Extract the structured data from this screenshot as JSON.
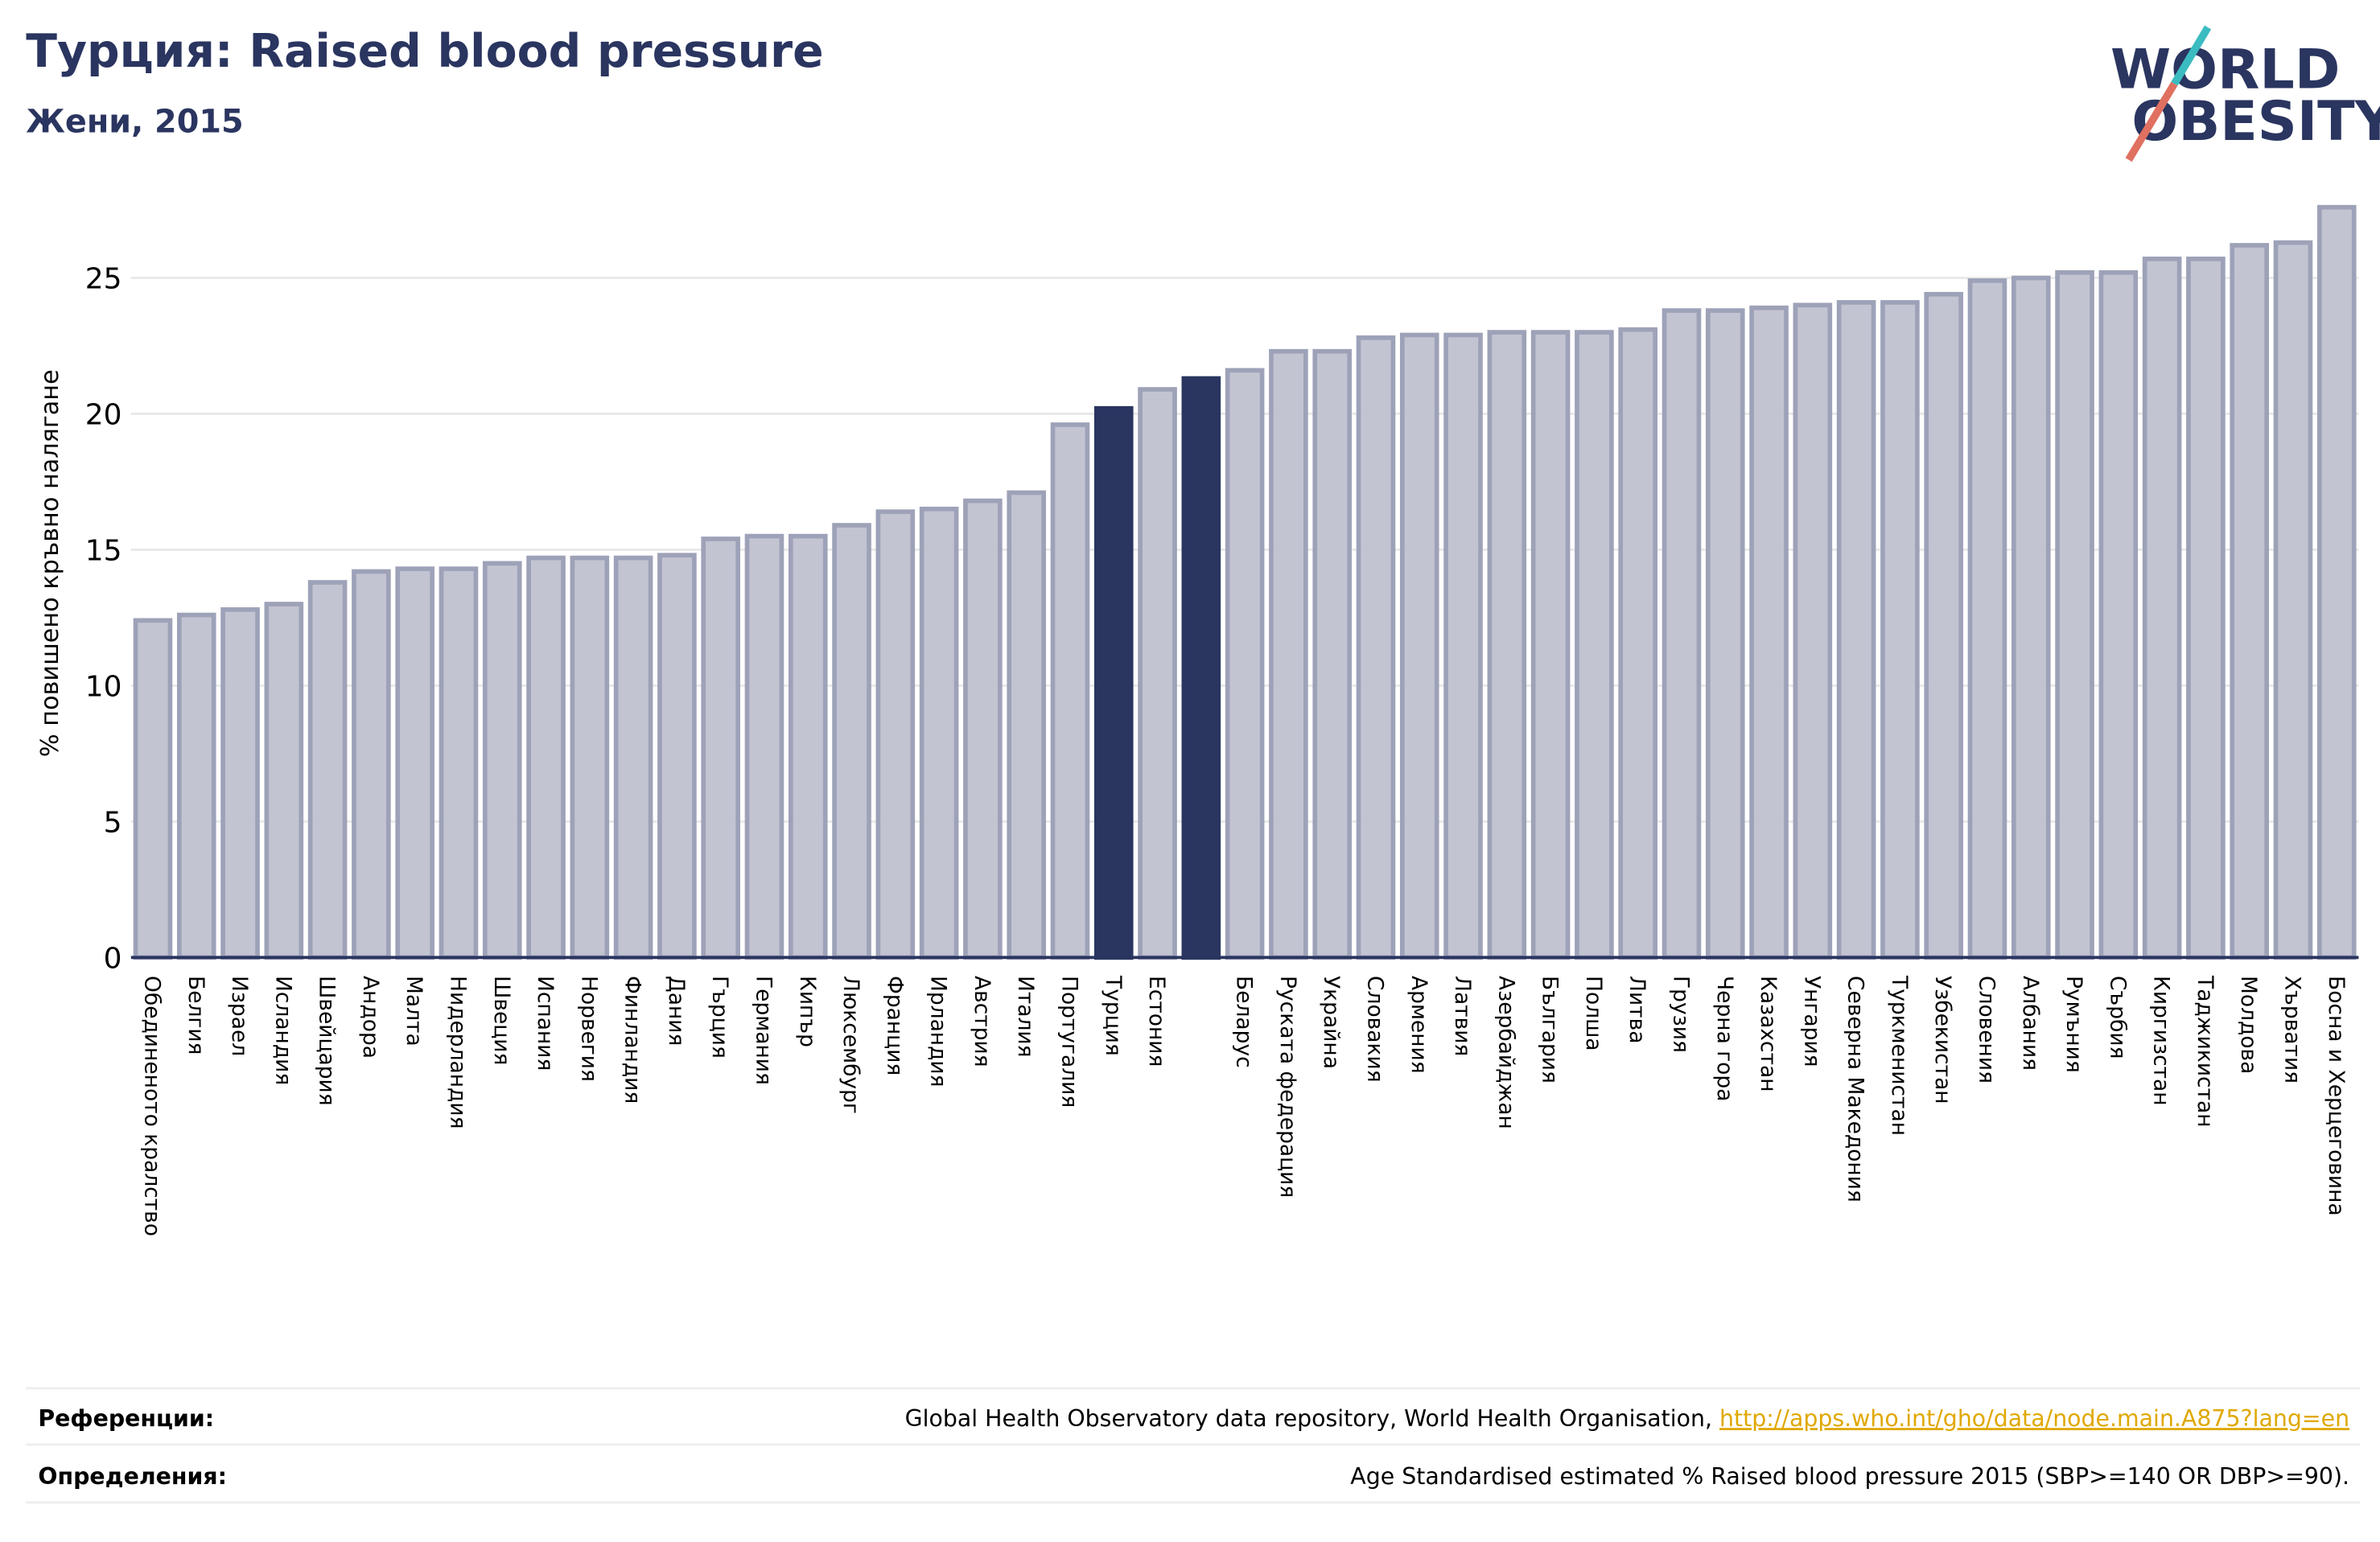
{
  "chart_data": {
    "type": "bar",
    "title": "Турция: Raised blood pressure",
    "subtitle": "Жени, 2015",
    "logo": [
      "WORLD",
      "OBESITY"
    ],
    "y_label": "% повишено кръвно налягане",
    "categories": [
      "Обединеното кралство",
      "Белгия",
      "Израел",
      "Исландия",
      "Швейцария",
      "Андора",
      "Малта",
      "Нидерландия",
      "Швеция",
      "Испания",
      "Норвегия",
      "Финландия",
      "Дания",
      "Гърция",
      "Германия",
      "Кипър",
      "Люксембург",
      "Франция",
      "Ирландия",
      "Австрия",
      "Италия",
      "Португалия",
      "Турция",
      "Естония",
      null,
      "Беларус",
      "Руската федерация",
      "Украйна",
      "Словакия",
      "Армения",
      "Латвия",
      "Азербайджан",
      "България",
      "Полша",
      "Литва",
      "Грузия",
      "Черна гора",
      "Казахстан",
      "Унгария",
      "Северна Македония",
      "Туркменистан",
      "Узбекистан",
      "Словения",
      "Албания",
      "Румъния",
      "Сърбия",
      "Киргизстан",
      "Таджикистан",
      "Молдова",
      "Хърватия",
      "Босна и Херцеговина"
    ],
    "values": [
      12.4,
      12.6,
      12.8,
      13.0,
      13.8,
      14.2,
      14.3,
      14.3,
      14.5,
      14.7,
      14.7,
      14.7,
      14.8,
      15.4,
      15.5,
      15.5,
      15.9,
      16.4,
      16.5,
      16.8,
      17.1,
      19.6,
      20.2,
      20.9,
      21.3,
      21.6,
      22.3,
      22.3,
      22.8,
      22.9,
      22.9,
      23.0,
      23.0,
      23.0,
      23.1,
      23.8,
      23.8,
      23.9,
      24.0,
      24.1,
      24.1,
      24.4,
      24.9,
      25.0,
      25.2,
      25.2,
      25.7,
      25.7,
      26.2,
      26.3,
      27.6
    ],
    "colors": [
      "#bfc1d0",
      "#bfc1d0",
      "#bfc1d0",
      "#bfc1d0",
      "#bfc1d0",
      "#bfc1d0",
      "#bfc1d0",
      "#bfc1d0",
      "#bfc1d0",
      "#bfc1d0",
      "#bfc1d0",
      "#bfc1d0",
      "#bfc1d0",
      "#bfc1d0",
      "#bfc1d0",
      "#bfc1d0",
      "#bfc1d0",
      "#bfc1d0",
      "#bfc1d0",
      "#bfc1d0",
      "#bfc1d0",
      "#bfc1d0",
      "#2a3560",
      "#bfc1d0",
      "#2a3560",
      "#bfc1d0",
      "#bfc1d0",
      "#bfc1d0",
      "#bfc1d0",
      "#bfc1d0",
      "#bfc1d0",
      "#bfc1d0",
      "#bfc1d0",
      "#bfc1d0",
      "#bfc1d0",
      "#bfc1d0",
      "#bfc1d0",
      "#bfc1d0",
      "#bfc1d0",
      "#bfc1d0",
      "#bfc1d0",
      "#bfc1d0",
      "#bfc1d0",
      "#bfc1d0",
      "#bfc1d0",
      "#bfc1d0",
      "#bfc1d0",
      "#bfc1d0",
      "#bfc1d0",
      "#bfc1d0",
      "#bfc1d0"
    ],
    "ylim": [
      0,
      28
    ],
    "yticks": [
      0,
      5,
      10,
      15,
      20,
      25
    ],
    "grid": true,
    "references_label": "Референции:",
    "references_text": "Global Health Observatory data repository, World Health Organisation, ",
    "references_link": "http://apps.who.int/gho/data/node.main.A875?lang=en",
    "definitions_label": "Определения:",
    "definitions_text": "Age Standardised estimated % Raised blood pressure 2015 (SBP>=140 OR DBP>=90)."
  }
}
